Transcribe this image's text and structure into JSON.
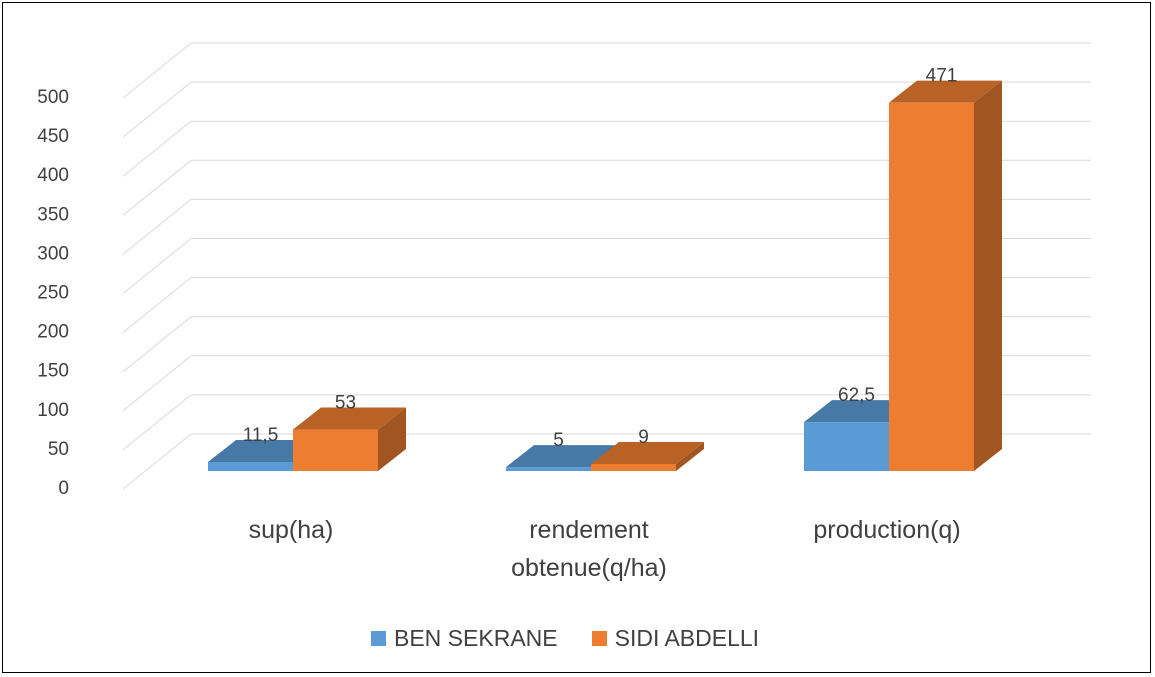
{
  "chart_data": {
    "type": "bar3d",
    "categories": [
      "sup(ha)",
      "rendement obtenue(q/ha)",
      "production(q)"
    ],
    "series": [
      {
        "name": "BEN SEKRANE",
        "color": "#5b9bd5",
        "values": [
          11.5,
          5,
          62.5
        ],
        "value_labels": [
          "11,5",
          "5",
          "62,5"
        ]
      },
      {
        "name": "SIDI ABDELLI",
        "color": "#ed7d31",
        "values": [
          53,
          9,
          471
        ],
        "value_labels": [
          "53",
          "9",
          "471"
        ]
      }
    ],
    "ylim": [
      0,
      500
    ],
    "yticks": [
      0,
      50,
      100,
      150,
      200,
      250,
      300,
      350,
      400,
      450,
      500
    ],
    "grid": true,
    "legend": "bottom"
  }
}
